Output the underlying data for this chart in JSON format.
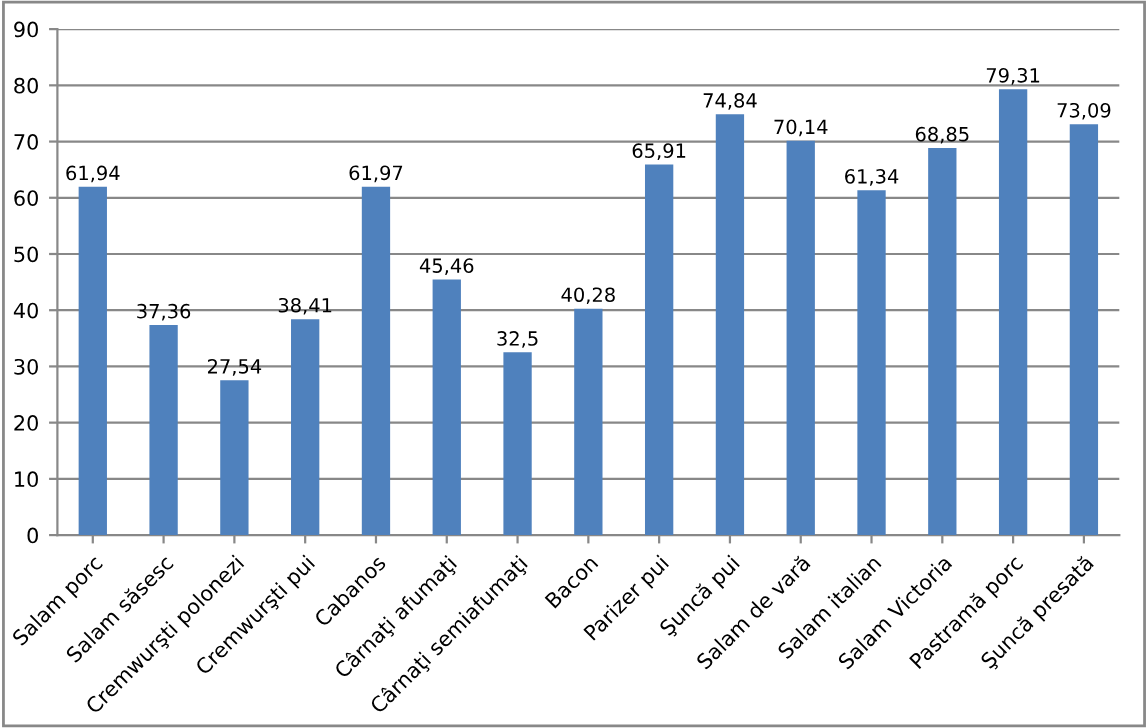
{
  "chart_data": {
    "type": "bar",
    "categories": [
      "Salam porc",
      "Salam săsesc",
      "Cremwurşti polonezi",
      "Cremwurşti pui",
      "Cabanos",
      "Cârnaţi afumaţi",
      "Cârnaţi semiafumaţi",
      "Bacon",
      "Parizer pui",
      "Şuncă pui",
      "Salam de vară",
      "Salam italian",
      "Salam Victoria",
      "Pastramă porc",
      "Şuncă presată"
    ],
    "values": [
      61.94,
      37.36,
      27.54,
      38.41,
      61.97,
      45.46,
      32.5,
      40.28,
      65.91,
      74.84,
      70.14,
      61.34,
      68.85,
      79.31,
      73.09
    ],
    "value_labels": [
      "61,94",
      "37,36",
      "27,54",
      "38,41",
      "61,97",
      "45,46",
      "32,5",
      "40,28",
      "65,91",
      "74,84",
      "70,14",
      "61,34",
      "68,85",
      "79,31",
      "73,09"
    ],
    "color": "#4f81bd",
    "ylim": [
      0,
      90
    ],
    "yticks": [
      0,
      10,
      20,
      30,
      40,
      50,
      60,
      70,
      80,
      90
    ],
    "grid": "y",
    "legend": false
  }
}
